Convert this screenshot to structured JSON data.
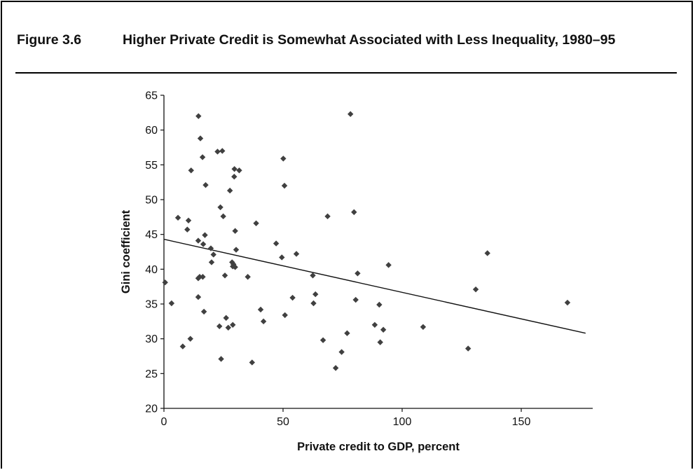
{
  "figure_label": "Figure 3.6",
  "figure_title": "Higher Private Credit is Somewhat Associated with Less Inequality, 1980–95",
  "chart_data": {
    "type": "scatter",
    "title": "Higher Private Credit is Somewhat Associated with Less Inequality, 1980–95",
    "xlabel": "Private credit to GDP, percent",
    "ylabel": "Gini coefficient",
    "xlim": [
      0,
      180
    ],
    "ylim": [
      20,
      65
    ],
    "x_ticks": [
      0,
      50,
      100,
      150
    ],
    "y_ticks": [
      20,
      25,
      30,
      35,
      40,
      45,
      50,
      55,
      60,
      65
    ],
    "grid": false,
    "marker": "diamond",
    "marker_color": "#404040",
    "trendline": {
      "x": [
        0,
        177
      ],
      "y": [
        44.3,
        30.8
      ]
    },
    "points": [
      [
        14.5,
        62.0
      ],
      [
        78.3,
        62.3
      ],
      [
        15.3,
        58.8
      ],
      [
        16.2,
        56.1
      ],
      [
        22.5,
        56.9
      ],
      [
        24.5,
        57.0
      ],
      [
        50.1,
        55.9
      ],
      [
        11.4,
        54.2
      ],
      [
        29.6,
        54.4
      ],
      [
        31.6,
        54.2
      ],
      [
        29.5,
        53.3
      ],
      [
        17.5,
        52.1
      ],
      [
        50.6,
        52.0
      ],
      [
        27.7,
        51.3
      ],
      [
        23.7,
        48.9
      ],
      [
        79.8,
        48.2
      ],
      [
        5.9,
        47.4
      ],
      [
        24.9,
        47.6
      ],
      [
        68.7,
        47.6
      ],
      [
        10.3,
        47.0
      ],
      [
        38.7,
        46.6
      ],
      [
        9.8,
        45.7
      ],
      [
        29.9,
        45.5
      ],
      [
        17.2,
        44.9
      ],
      [
        14.4,
        44.1
      ],
      [
        16.5,
        43.6
      ],
      [
        47.1,
        43.7
      ],
      [
        19.7,
        43.0
      ],
      [
        30.3,
        42.8
      ],
      [
        135.8,
        42.3
      ],
      [
        20.8,
        42.1
      ],
      [
        55.6,
        42.2
      ],
      [
        49.5,
        41.7
      ],
      [
        28.6,
        41.0
      ],
      [
        20.0,
        41.0
      ],
      [
        29.2,
        40.7
      ],
      [
        28.9,
        40.4
      ],
      [
        29.9,
        40.3
      ],
      [
        94.3,
        40.6
      ],
      [
        81.3,
        39.4
      ],
      [
        25.6,
        39.1
      ],
      [
        35.2,
        38.9
      ],
      [
        62.5,
        39.1
      ],
      [
        0.5,
        38.1
      ],
      [
        15.0,
        38.9
      ],
      [
        14.4,
        38.7
      ],
      [
        16.3,
        38.9
      ],
      [
        14.4,
        36.0
      ],
      [
        63.6,
        36.4
      ],
      [
        54.0,
        35.9
      ],
      [
        80.5,
        35.6
      ],
      [
        130.9,
        37.1
      ],
      [
        3.2,
        35.1
      ],
      [
        62.8,
        35.1
      ],
      [
        90.4,
        34.9
      ],
      [
        169.4,
        35.2
      ],
      [
        40.6,
        34.2
      ],
      [
        16.8,
        33.9
      ],
      [
        50.8,
        33.4
      ],
      [
        26.1,
        33.0
      ],
      [
        41.8,
        32.5
      ],
      [
        28.9,
        32.0
      ],
      [
        23.3,
        31.8
      ],
      [
        27.0,
        31.6
      ],
      [
        88.5,
        32.0
      ],
      [
        108.8,
        31.7
      ],
      [
        92.1,
        31.3
      ],
      [
        76.9,
        30.8
      ],
      [
        11.1,
        30.0
      ],
      [
        66.8,
        29.8
      ],
      [
        7.9,
        28.9
      ],
      [
        90.8,
        29.5
      ],
      [
        127.7,
        28.6
      ],
      [
        74.6,
        28.1
      ],
      [
        24.0,
        27.1
      ],
      [
        37.0,
        26.6
      ],
      [
        72.1,
        25.8
      ]
    ]
  }
}
